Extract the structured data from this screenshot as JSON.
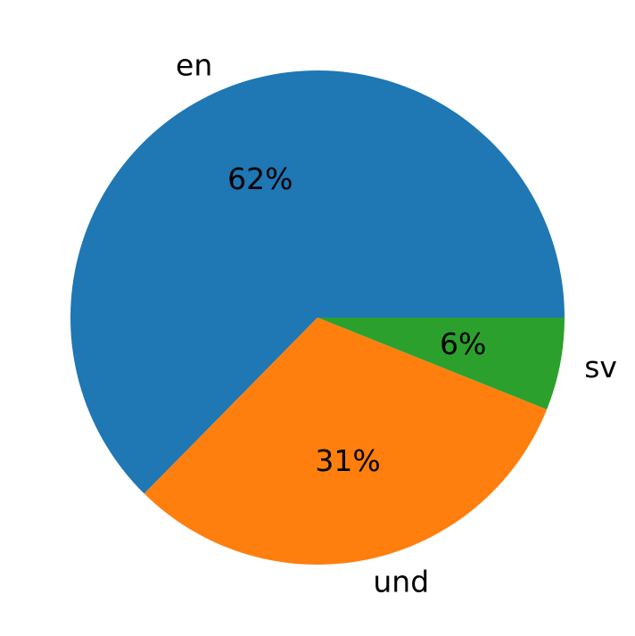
{
  "chart_data": {
    "type": "pie",
    "title": "",
    "slices": [
      {
        "label": "en",
        "value": 62,
        "pct_label": "62%",
        "color": "#1f77b4"
      },
      {
        "label": "und",
        "value": 31,
        "pct_label": "31%",
        "color": "#ff7f0e"
      },
      {
        "label": "sv",
        "value": 6,
        "pct_label": "6%",
        "color": "#2ca02c"
      }
    ],
    "start_angle": "0° (3 o'clock)",
    "direction": "counterclockwise",
    "legend": "none"
  }
}
